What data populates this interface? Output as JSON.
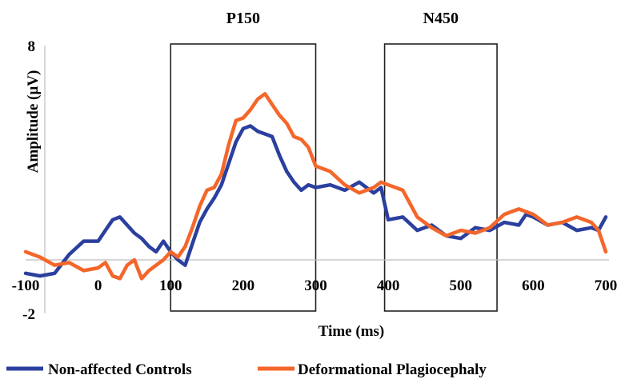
{
  "chart_data": {
    "type": "line",
    "title": "",
    "xlabel": "Time (ms)",
    "ylabel": "Amplitude (µV)",
    "xlim": [
      -100,
      700
    ],
    "ylim": [
      -2,
      8
    ],
    "x_ticks": [
      -100,
      0,
      100,
      200,
      300,
      400,
      500,
      600,
      700
    ],
    "x_tick_labels": [
      "-100",
      "0",
      "100",
      "200",
      "300",
      "400",
      "500",
      "600",
      "700"
    ],
    "y_ticks": [
      -2,
      8
    ],
    "y_tick_labels": [
      "-2",
      "8"
    ],
    "grid": false,
    "legend_position": "bottom",
    "windows": [
      {
        "label": "P150",
        "x_start": 100,
        "x_end": 300
      },
      {
        "label": "N450",
        "x_start": 395,
        "x_end": 550
      }
    ],
    "series": [
      {
        "name": "Non-affected Controls",
        "color": "#2b3f9e",
        "x": [
          -100,
          -80,
          -60,
          -40,
          -20,
          0,
          10,
          20,
          30,
          40,
          50,
          60,
          70,
          80,
          90,
          100,
          110,
          120,
          130,
          140,
          150,
          160,
          170,
          180,
          190,
          200,
          210,
          220,
          230,
          240,
          250,
          260,
          270,
          280,
          290,
          300,
          320,
          340,
          360,
          380,
          390,
          400,
          420,
          440,
          460,
          480,
          500,
          520,
          540,
          560,
          580,
          590,
          600,
          620,
          640,
          660,
          680,
          690,
          700
        ],
        "y": [
          -0.5,
          -0.6,
          -0.5,
          0.2,
          0.7,
          0.7,
          1.1,
          1.5,
          1.6,
          1.3,
          1.0,
          0.8,
          0.5,
          0.3,
          0.7,
          0.3,
          0.0,
          -0.2,
          0.6,
          1.4,
          1.9,
          2.3,
          2.8,
          3.6,
          4.4,
          4.9,
          5.0,
          4.8,
          4.7,
          4.6,
          3.9,
          3.3,
          2.9,
          2.6,
          2.8,
          2.7,
          2.8,
          2.6,
          2.9,
          2.5,
          2.7,
          1.5,
          1.6,
          1.1,
          1.3,
          0.9,
          0.8,
          1.2,
          1.1,
          1.4,
          1.3,
          1.7,
          1.6,
          1.3,
          1.4,
          1.1,
          1.2,
          1.1,
          1.6
        ]
      },
      {
        "name": "Deformational Plagiocephaly",
        "color": "#f4662a",
        "x": [
          -100,
          -80,
          -60,
          -40,
          -20,
          0,
          10,
          20,
          30,
          40,
          50,
          60,
          70,
          80,
          90,
          100,
          110,
          120,
          130,
          140,
          150,
          160,
          170,
          180,
          190,
          200,
          210,
          220,
          230,
          240,
          250,
          260,
          270,
          280,
          290,
          300,
          320,
          340,
          360,
          380,
          390,
          400,
          420,
          440,
          460,
          480,
          500,
          520,
          540,
          560,
          580,
          600,
          620,
          640,
          660,
          680,
          690,
          700
        ],
        "y": [
          0.3,
          0.1,
          -0.2,
          -0.1,
          -0.4,
          -0.3,
          -0.1,
          -0.6,
          -0.7,
          -0.2,
          0.0,
          -0.7,
          -0.4,
          -0.2,
          0.0,
          0.3,
          0.1,
          0.5,
          1.2,
          2.0,
          2.6,
          2.7,
          3.2,
          4.3,
          5.2,
          5.3,
          5.6,
          6.0,
          6.2,
          5.8,
          5.4,
          5.1,
          4.6,
          4.5,
          4.2,
          3.5,
          3.3,
          2.8,
          2.5,
          2.7,
          2.9,
          2.8,
          2.6,
          1.6,
          1.2,
          0.9,
          1.1,
          1.0,
          1.2,
          1.7,
          1.9,
          1.7,
          1.3,
          1.4,
          1.6,
          1.4,
          1.1,
          0.3
        ]
      }
    ]
  }
}
